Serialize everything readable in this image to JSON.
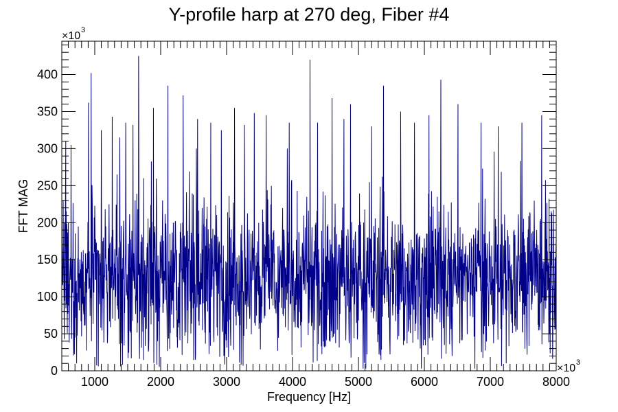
{
  "chart_data": {
    "type": "line",
    "title": "Y-profile harp at 270 deg, Fiber #4",
    "xlabel": "Frequency [Hz]",
    "ylabel": "FFT MAG",
    "xlim": [
      500000,
      8000000
    ],
    "ylim": [
      0,
      445000
    ],
    "x_multiplier": "×10",
    "x_multiplier_exp": "3",
    "y_multiplier": "×10",
    "y_multiplier_exp": "3",
    "x_ticks": [
      1000,
      2000,
      3000,
      4000,
      5000,
      6000,
      7000,
      8000
    ],
    "x_tick_labels": [
      "1000",
      "2000",
      "3000",
      "4000",
      "5000",
      "6000",
      "7000",
      "8000"
    ],
    "y_ticks": [
      0,
      50,
      100,
      150,
      200,
      250,
      300,
      350,
      400
    ],
    "y_tick_labels": [
      "0",
      "50",
      "100",
      "150",
      "200",
      "250",
      "300",
      "350",
      "400"
    ],
    "grid": false,
    "series_color": "#00008b",
    "noise_profile": {
      "baseline_mean": 125000,
      "typical_range": [
        40000,
        250000
      ],
      "n_points": 1800
    },
    "peaks": [
      {
        "x": 560000,
        "y": 310000
      },
      {
        "x": 640000,
        "y": 305000
      },
      {
        "x": 905000,
        "y": 362000
      },
      {
        "x": 945000,
        "y": 402000
      },
      {
        "x": 1100000,
        "y": 325000
      },
      {
        "x": 1265000,
        "y": 343000
      },
      {
        "x": 1380000,
        "y": 315000
      },
      {
        "x": 1470000,
        "y": 335000
      },
      {
        "x": 1580000,
        "y": 332000
      },
      {
        "x": 1665000,
        "y": 425000
      },
      {
        "x": 1890000,
        "y": 355000
      },
      {
        "x": 2110000,
        "y": 385000
      },
      {
        "x": 2340000,
        "y": 372000
      },
      {
        "x": 2560000,
        "y": 340000
      },
      {
        "x": 2760000,
        "y": 335000
      },
      {
        "x": 2920000,
        "y": 325000
      },
      {
        "x": 3120000,
        "y": 355000
      },
      {
        "x": 3270000,
        "y": 332000
      },
      {
        "x": 3420000,
        "y": 348000
      },
      {
        "x": 3600000,
        "y": 345000
      },
      {
        "x": 3950000,
        "y": 335000
      },
      {
        "x": 4265000,
        "y": 420000
      },
      {
        "x": 4380000,
        "y": 335000
      },
      {
        "x": 4600000,
        "y": 368000
      },
      {
        "x": 4780000,
        "y": 340000
      },
      {
        "x": 4880000,
        "y": 360000
      },
      {
        "x": 5200000,
        "y": 330000
      },
      {
        "x": 5380000,
        "y": 385000
      },
      {
        "x": 5640000,
        "y": 350000
      },
      {
        "x": 5850000,
        "y": 335000
      },
      {
        "x": 6070000,
        "y": 345000
      },
      {
        "x": 6250000,
        "y": 393000
      },
      {
        "x": 6510000,
        "y": 360000
      },
      {
        "x": 6860000,
        "y": 335000
      },
      {
        "x": 7120000,
        "y": 330000
      },
      {
        "x": 7480000,
        "y": 335000
      },
      {
        "x": 7780000,
        "y": 345000
      }
    ]
  }
}
